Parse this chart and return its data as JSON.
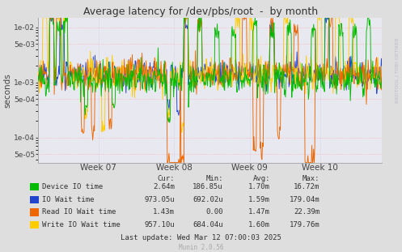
{
  "title": "Average latency for /dev/pbs/root  -  by month",
  "ylabel": "seconds",
  "background_color": "#dedede",
  "plot_bg_color": "#e8e8f0",
  "grid_color": "#ffaaaa",
  "x_labels": [
    "Week 07",
    "Week 08",
    "Week 09",
    "Week 10"
  ],
  "yticks": [
    5e-05,
    0.0001,
    0.0005,
    0.001,
    0.005,
    0.01
  ],
  "ytick_labels": [
    "5e-05",
    "1e-04",
    "5e-04",
    "1e-03",
    "5e-03",
    "1e-02"
  ],
  "legend_entries": [
    {
      "label": "Device IO time",
      "color": "#00bb00"
    },
    {
      "label": "IO Wait time",
      "color": "#2244cc"
    },
    {
      "label": "Read IO Wait time",
      "color": "#ee6600"
    },
    {
      "label": "Write IO Wait time",
      "color": "#ffcc00"
    }
  ],
  "stats_headers": [
    "Cur:",
    "Min:",
    "Avg:",
    "Max:"
  ],
  "stats_rows": [
    [
      "2.64m",
      "186.85u",
      "1.70m",
      "16.72m"
    ],
    [
      "973.05u",
      "692.02u",
      "1.59m",
      "179.04m"
    ],
    [
      "1.43m",
      "0.00",
      "1.47m",
      "22.39m"
    ],
    [
      "957.10u",
      "684.04u",
      "1.60m",
      "179.76m"
    ]
  ],
  "last_update": "Last update: Wed Mar 12 07:00:03 2025",
  "munin_label": "Munin 2.0.56",
  "right_label": "RRDTOOL / TOBI OETIKER",
  "n_points": 600,
  "seed": 42
}
